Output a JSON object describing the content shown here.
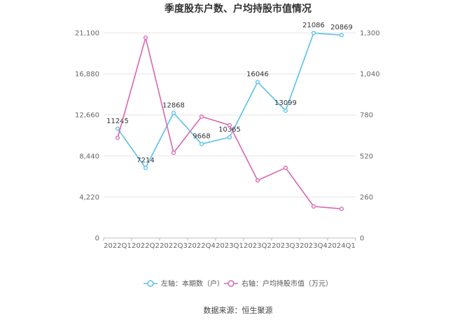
{
  "chart_data": {
    "type": "line",
    "title": "季度股东户数、户均持股市值情况",
    "categories": [
      "2022Q1",
      "2022Q2",
      "2022Q3",
      "2022Q4",
      "2023Q1",
      "2023Q2",
      "2023Q3",
      "2023Q4",
      "2024Q1"
    ],
    "left_axis": {
      "ticks": [
        "0",
        "4,220",
        "8,440",
        "12,660",
        "16,880",
        "21,100"
      ],
      "ylim": [
        0,
        21100
      ]
    },
    "right_axis": {
      "ticks": [
        "0",
        "260",
        "520",
        "780",
        "1,040",
        "1,300"
      ],
      "ylim": [
        0,
        1300
      ]
    },
    "series": [
      {
        "name": "左轴：本期数（户）",
        "axis": "left",
        "color": "#5bc0ea",
        "values": [
          11245,
          7214,
          12868,
          9668,
          10365,
          16046,
          13099,
          21086,
          20869
        ],
        "labels": [
          "11245",
          "7214",
          "12868",
          "9668",
          "10365",
          "16046",
          "13099",
          "21086",
          "20869"
        ]
      },
      {
        "name": "右轴：户均持股市值（万元）",
        "axis": "right",
        "color": "#d966b0",
        "values": [
          635,
          1270,
          540,
          770,
          715,
          365,
          445,
          200,
          185
        ]
      }
    ],
    "grid": true,
    "legend": "bottom",
    "source": "数据来源：恒生聚源"
  }
}
